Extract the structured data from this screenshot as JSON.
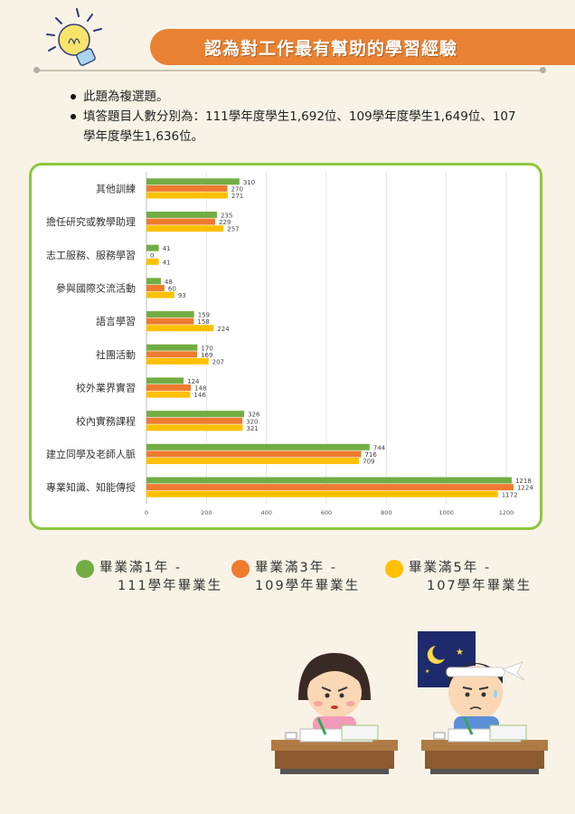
{
  "header": {
    "title": "認為對工作最有幫助的學習經驗"
  },
  "notes": [
    "此題為複選題。",
    "填答題目人數分別為：111學年度學生1,692位、109學年度學生1,649位、107學年度學生1,636位。"
  ],
  "legend": [
    {
      "line1": "畢業滿1年 -",
      "line2": "111學年畢業生",
      "color": "#72ad43"
    },
    {
      "line1": "畢業滿3年 -",
      "line2": "109學年畢業生",
      "color": "#ee7b30"
    },
    {
      "line1": "畢業滿5年 -",
      "line2": "107學年畢業生",
      "color": "#ffc000"
    }
  ],
  "chart_data": {
    "type": "bar",
    "orientation": "horizontal",
    "categories": [
      "其他訓練",
      "擔任研究或教學助理",
      "志工服務、服務學習",
      "參與國際交流活動",
      "語言學習",
      "社團活動",
      "校外業界實習",
      "校內實務課程",
      "建立同學及老師人脈",
      "專業知識、知能傳授"
    ],
    "series": [
      {
        "name": "畢業滿1年 - 111學年畢業生",
        "color": "#72ad43",
        "values": [
          310,
          235,
          41,
          48,
          159,
          170,
          124,
          326,
          744,
          1218
        ]
      },
      {
        "name": "畢業滿3年 - 109學年畢業生",
        "color": "#ee7b30",
        "values": [
          270,
          229,
          0,
          60,
          158,
          169,
          148,
          320,
          716,
          1224
        ]
      },
      {
        "name": "畢業滿5年 - 107學年畢業生",
        "color": "#ffc000",
        "values": [
          271,
          257,
          41,
          93,
          224,
          207,
          146,
          321,
          709,
          1172
        ]
      }
    ],
    "xticks": [
      0,
      200,
      400,
      600,
      800,
      1000,
      1200
    ],
    "xlim": [
      0,
      1320
    ],
    "grid": true,
    "legend_position": "bottom"
  }
}
